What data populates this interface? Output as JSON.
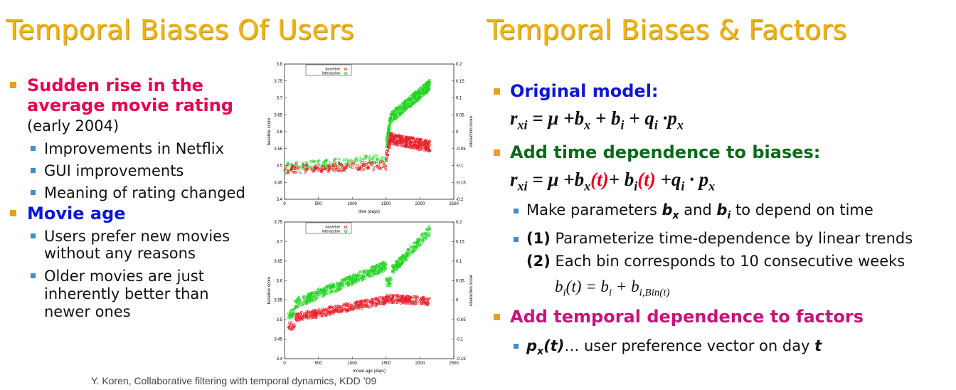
{
  "left": {
    "title": "Temporal Biases Of Users",
    "b1": {
      "line1": "Sudden rise in the",
      "line2": "average movie rating",
      "line3": "(early 2004)"
    },
    "b1_subs": [
      "Improvements in Netflix",
      "GUI improvements",
      "Meaning of rating changed"
    ],
    "b2": "Movie age",
    "b2_sub1": [
      "Users prefer new movies",
      "without any reasons"
    ],
    "b2_sub2": [
      "Older movies are just",
      "inherently better than",
      "newer ones"
    ]
  },
  "plots": {
    "top": {
      "legend": [
        "baseline",
        "interaction"
      ],
      "xlabel": "time (days)",
      "ylabel_left": "baseline score",
      "ylabel_right": "interaction score",
      "x_ticks": [
        "0",
        "500",
        "1000",
        "1500",
        "2000",
        "2500"
      ],
      "y_ticks_left": [
        "3.4",
        "3.45",
        "3.5",
        "3.55",
        "3.6",
        "3.65",
        "3.7",
        "3.75",
        "3.8"
      ],
      "y_ticks_right": [
        "-0.2",
        "-0.15",
        "-0.1",
        "-0.05",
        "0",
        "0.05",
        "0.1",
        "0.15",
        "0.2"
      ]
    },
    "bottom": {
      "legend": [
        "baseline",
        "interaction"
      ],
      "xlabel": "movie age (days)",
      "ylabel_left": "baseline score",
      "ylabel_right": "interaction score",
      "x_ticks": [
        "0",
        "500",
        "1000",
        "1500",
        "2000",
        "2500"
      ],
      "y_ticks_left": [
        "3.4",
        "3.45",
        "3.5",
        "3.55",
        "3.6",
        "3.65",
        "3.7",
        "3.75"
      ],
      "y_ticks_right": [
        "-0.15",
        "-0.1",
        "-0.05",
        "0",
        "0.05",
        "0.1",
        "0.15",
        "0.2"
      ]
    },
    "colors": {
      "baseline": "#e8202a",
      "interaction": "#1fd41f"
    }
  },
  "citation": "Y. Koren, Collaborative filtering with temporal dynamics, KDD ’09",
  "right": {
    "title": "Temporal Biases & Factors",
    "orig": "Original model:",
    "eq1": {
      "lhs": "r",
      "lhs_sub": "xi",
      "eqmu": " = μ +",
      "bx": "b",
      "bx_sub": "x",
      "plus_bi": " + b",
      "bi_sub": "i",
      "plus_q": " + q",
      "q_sub": "i",
      "dot_p": " ·p",
      "p_sub": "x"
    },
    "add_time": "Add time dependence to biases:",
    "eq2": {
      "lhs": "r",
      "lhs_sub": "xi",
      "eqmu": " = μ +",
      "bx": "b",
      "bx_sub": "x",
      "t1": "(t)",
      "plus_bi": "+ b",
      "bi_sub": "i",
      "t2": "(t)",
      "plus_q": " +q",
      "q_sub": "i",
      "dot_p": " · p",
      "p_sub": "x"
    },
    "s1": {
      "pre": "Make parameters ",
      "b": "b",
      "bsub": "x",
      "mid": " and ",
      "b2": "b",
      "b2sub": "i",
      "post": " to depend on time"
    },
    "s2": {
      "num": "(1)",
      "text": " Parameterize time-dependence by linear trends"
    },
    "s3": {
      "num": "(2)",
      "text": " Each bin corresponds to 10 consecutive weeks"
    },
    "eq3": {
      "lhs": "b",
      "lhs_sub": "i",
      "mid": "(t) = b",
      "rhs_sub": "i",
      "plus": " + b",
      "bin_sub": "i,Bin(t)"
    },
    "add_temp": "Add temporal dependence to factors",
    "s4": {
      "p": "p",
      "psub": "x",
      "pt": "(t)",
      "text": "… user preference vector on day ",
      "t": "t"
    }
  }
}
